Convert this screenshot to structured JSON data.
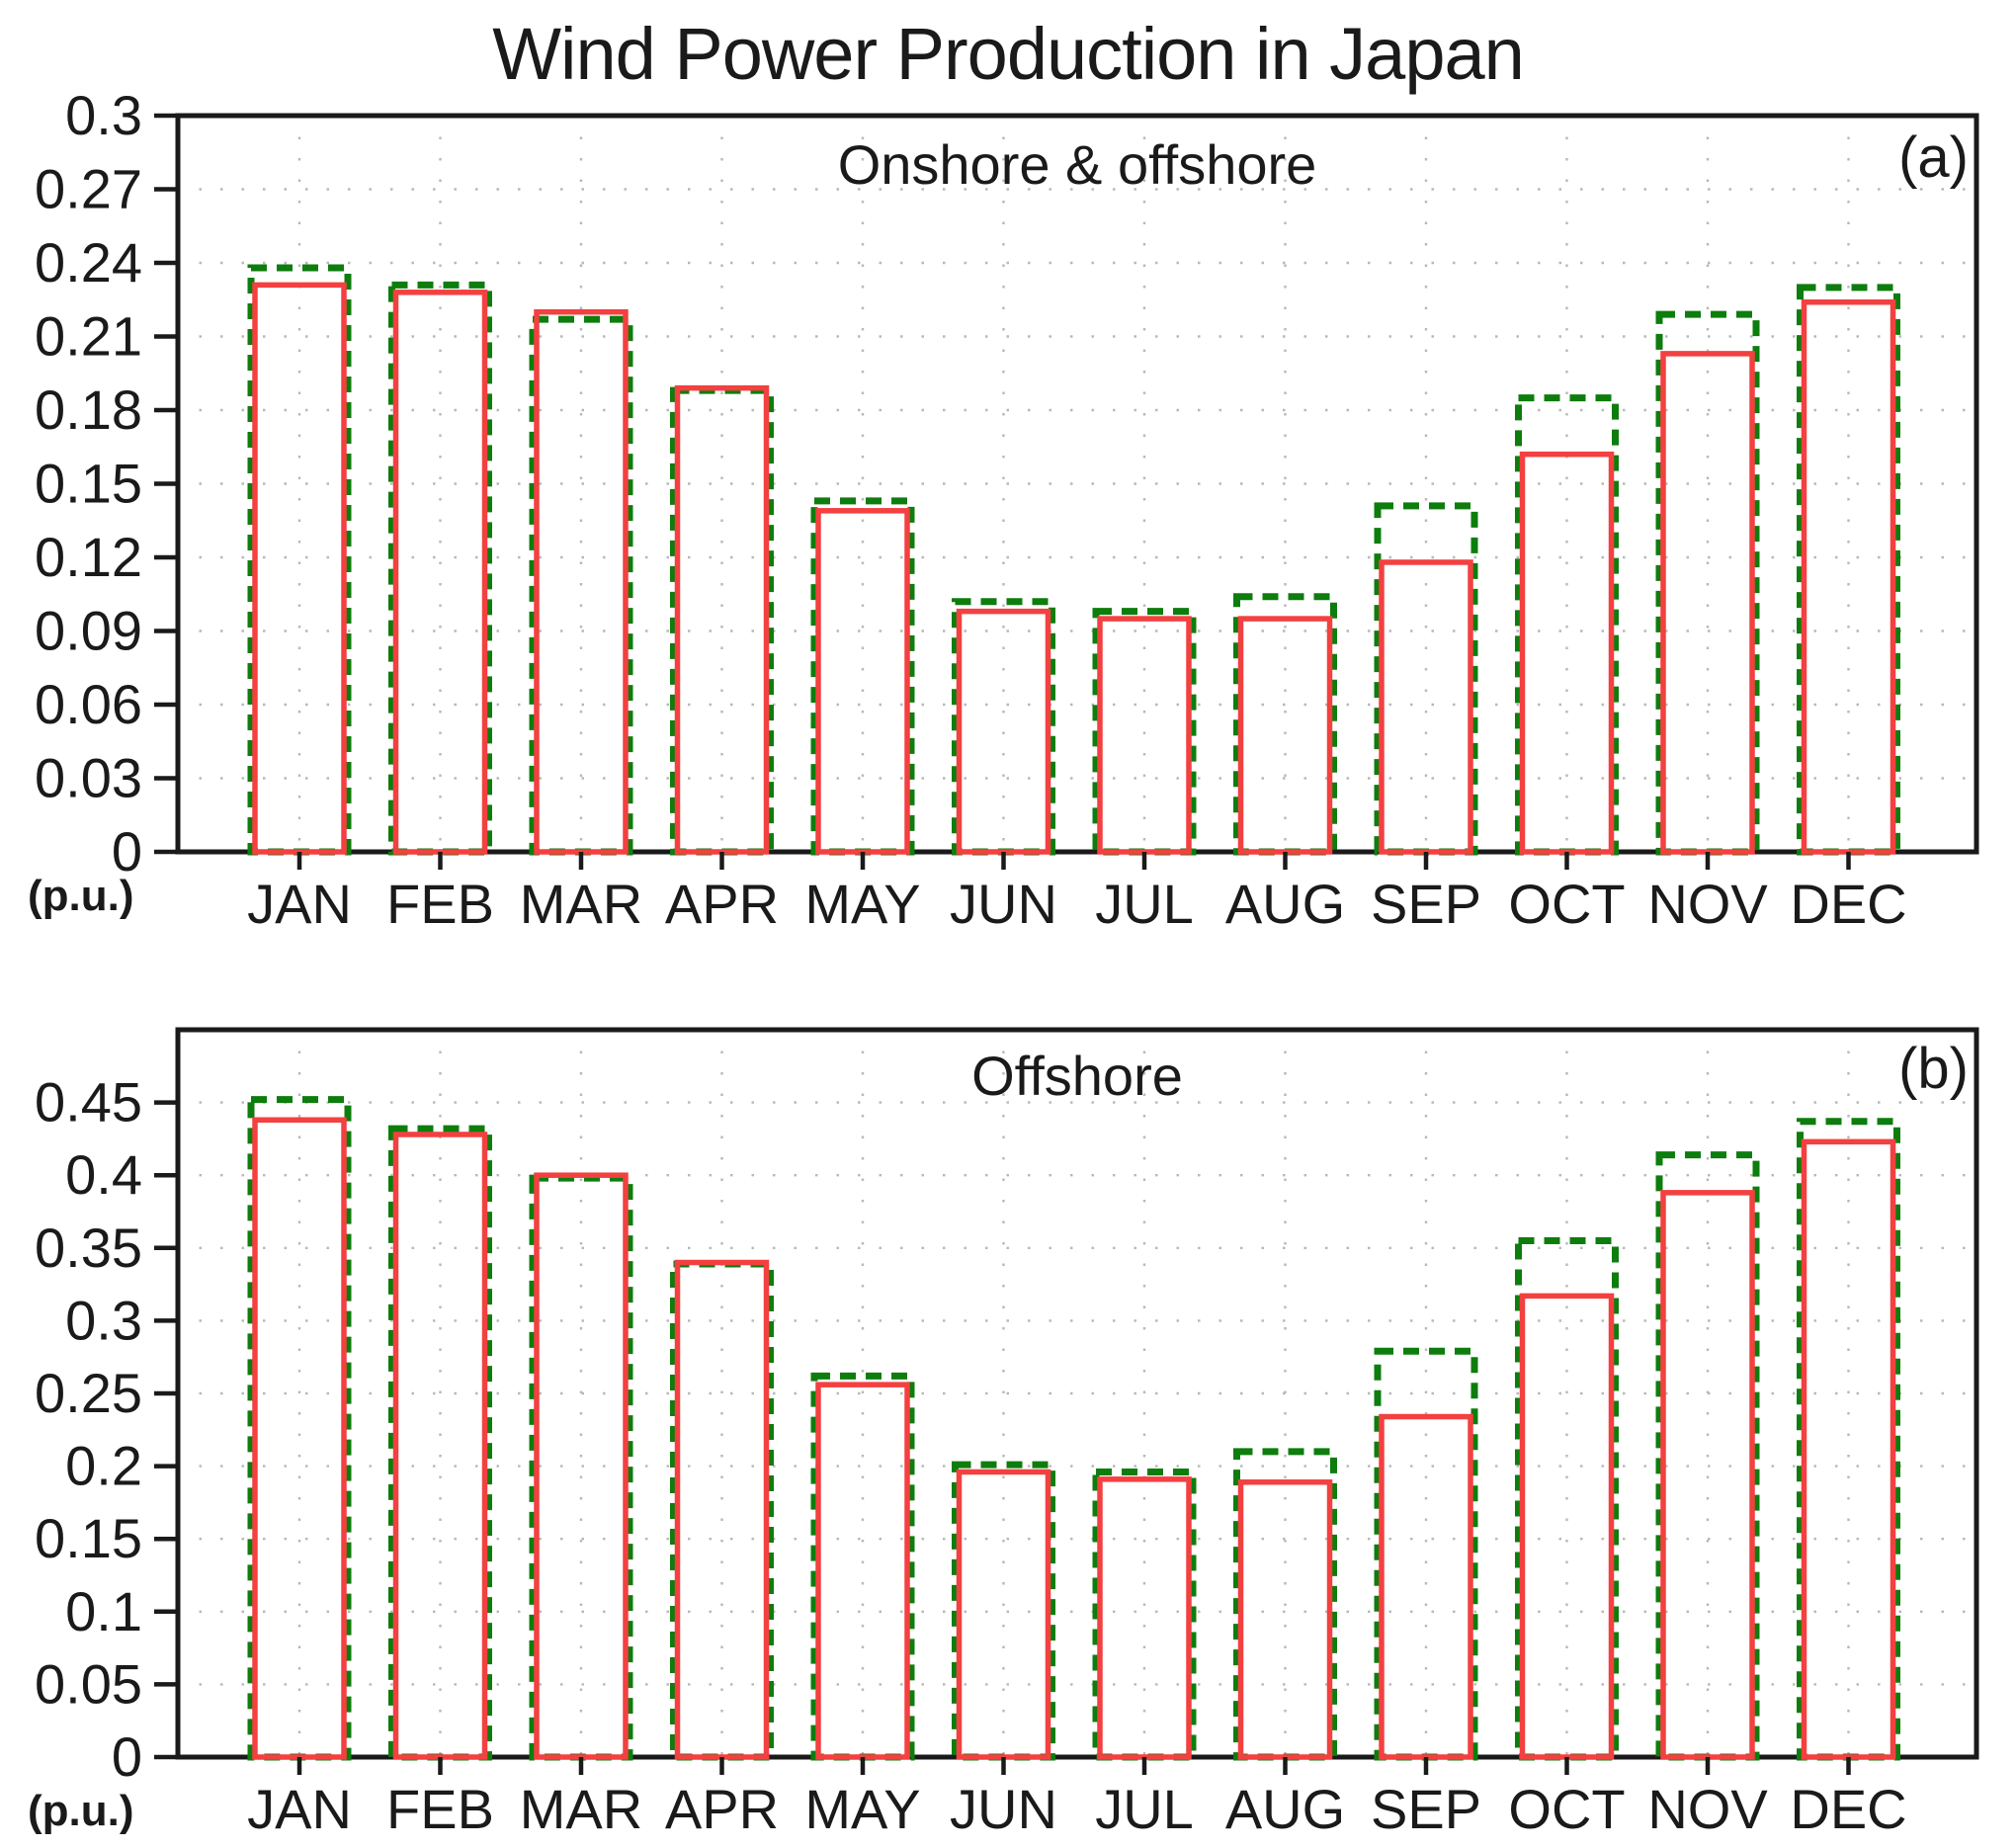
{
  "title": "Wind Power Production in Japan",
  "colors": {
    "green_dashed_series": "#0d7d0d",
    "red_solid_series": "#f34040",
    "frame": "#1a1a1a",
    "grid": "#b8b8b8"
  },
  "chart_data": [
    {
      "type": "bar",
      "panel_label": "(a)",
      "title": "Onshore & offshore",
      "ylabel": "(p.u.)",
      "ylim": [
        0,
        0.3
      ],
      "ytick_values": [
        0,
        0.03,
        0.06,
        0.09,
        0.12,
        0.15,
        0.18,
        0.21,
        0.24,
        0.27,
        0.3
      ],
      "ytick_labels": [
        "0",
        "0.03",
        "0.06",
        "0.09",
        "0.12",
        "0.15",
        "0.18",
        "0.21",
        "0.24",
        "0.27",
        "0.3"
      ],
      "categories": [
        "JAN",
        "FEB",
        "MAR",
        "APR",
        "MAY",
        "JUN",
        "JUL",
        "AUG",
        "SEP",
        "OCT",
        "NOV",
        "DEC"
      ],
      "series": [
        {
          "name": "green-dashed-outline",
          "style": "dashed",
          "color": "#0d7d0d",
          "values": [
            0.238,
            0.231,
            0.217,
            0.188,
            0.143,
            0.102,
            0.098,
            0.104,
            0.141,
            0.185,
            0.219,
            0.23
          ]
        },
        {
          "name": "red-solid-outline",
          "style": "solid",
          "color": "#f34040",
          "values": [
            0.231,
            0.228,
            0.22,
            0.189,
            0.139,
            0.098,
            0.095,
            0.095,
            0.118,
            0.162,
            0.203,
            0.224
          ]
        }
      ],
      "grid": true,
      "legend": "none"
    },
    {
      "type": "bar",
      "panel_label": "(b)",
      "title": "Offshore",
      "ylabel": "(p.u.)",
      "ylim": [
        0,
        0.5
      ],
      "ytick_values": [
        0,
        0.05,
        0.1,
        0.15,
        0.2,
        0.25,
        0.3,
        0.35,
        0.4,
        0.45
      ],
      "ytick_labels": [
        "0",
        "0.05",
        "0.1",
        "0.15",
        "0.2",
        "0.25",
        "0.3",
        "0.35",
        "0.4",
        "0.45"
      ],
      "categories": [
        "JAN",
        "FEB",
        "MAR",
        "APR",
        "MAY",
        "JUN",
        "JUL",
        "AUG",
        "SEP",
        "OCT",
        "NOV",
        "DEC"
      ],
      "series": [
        {
          "name": "green-dashed-outline",
          "style": "dashed",
          "color": "#0d7d0d",
          "values": [
            0.452,
            0.432,
            0.398,
            0.339,
            0.262,
            0.201,
            0.196,
            0.21,
            0.279,
            0.355,
            0.414,
            0.437
          ]
        },
        {
          "name": "red-solid-outline",
          "style": "solid",
          "color": "#f34040",
          "values": [
            0.438,
            0.428,
            0.4,
            0.34,
            0.256,
            0.196,
            0.191,
            0.189,
            0.234,
            0.317,
            0.388,
            0.423
          ]
        }
      ],
      "grid": true,
      "legend": "none"
    }
  ]
}
